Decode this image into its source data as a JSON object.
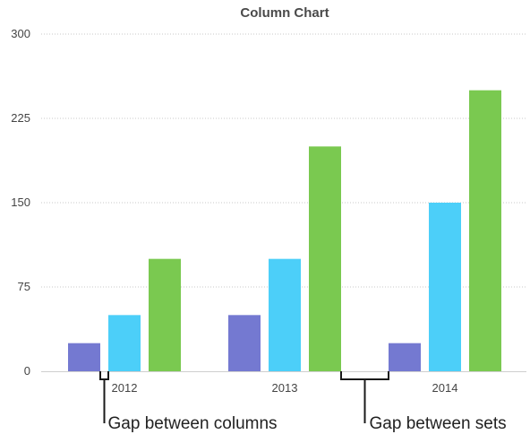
{
  "chart_data": {
    "type": "bar",
    "title": "Column Chart",
    "categories": [
      "2012",
      "2013",
      "2014"
    ],
    "series": [
      {
        "values": [
          25,
          50,
          25
        ],
        "color": "#7479d1"
      },
      {
        "values": [
          50,
          100,
          150
        ],
        "color": "#4ccff9"
      },
      {
        "values": [
          100,
          200,
          250
        ],
        "color": "#7ac950"
      }
    ],
    "ylim": [
      0,
      300
    ],
    "yticks": [
      "0",
      "75",
      "150",
      "225",
      "300"
    ],
    "grid": "horizontal dotted",
    "axis_color": "#cfcfcf",
    "grid_color": "#c8c8c8",
    "annotations": [
      {
        "text": "Gap between columns",
        "target": "gap-between-columns"
      },
      {
        "text": "Gap between sets",
        "target": "gap-between-sets"
      }
    ]
  }
}
